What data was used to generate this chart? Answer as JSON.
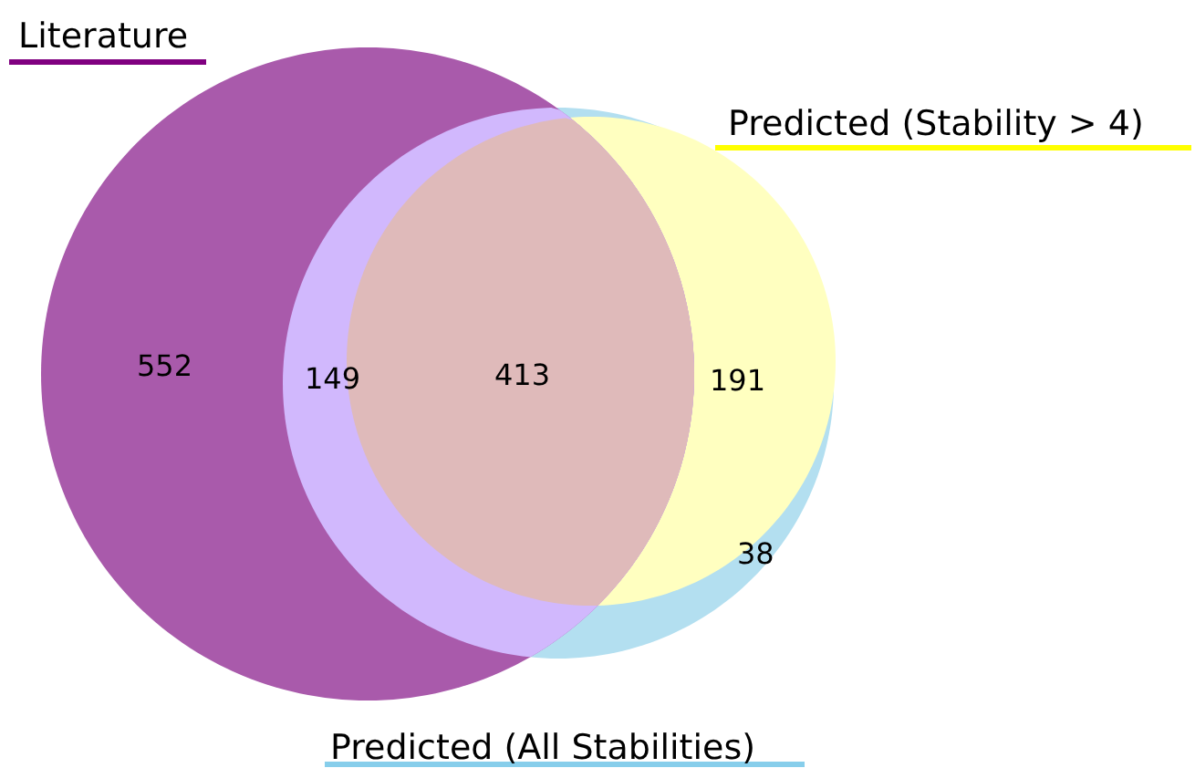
{
  "chart_data": {
    "type": "other",
    "categories": [
      null,
      null,
      null,
      null,
      null
    ],
    "values": [
      552,
      149,
      413,
      191,
      38
    ],
    "colors": [
      "#a95aab",
      "#d1b8fd",
      "#dfbaba",
      "#ffffc0",
      "#b3dff0"
    ],
    "data_labels": true,
    "annotations": [
      "Literature",
      "Predicted (Stability > 4)",
      "Predicted (All Stabilities)"
    ]
  }
}
